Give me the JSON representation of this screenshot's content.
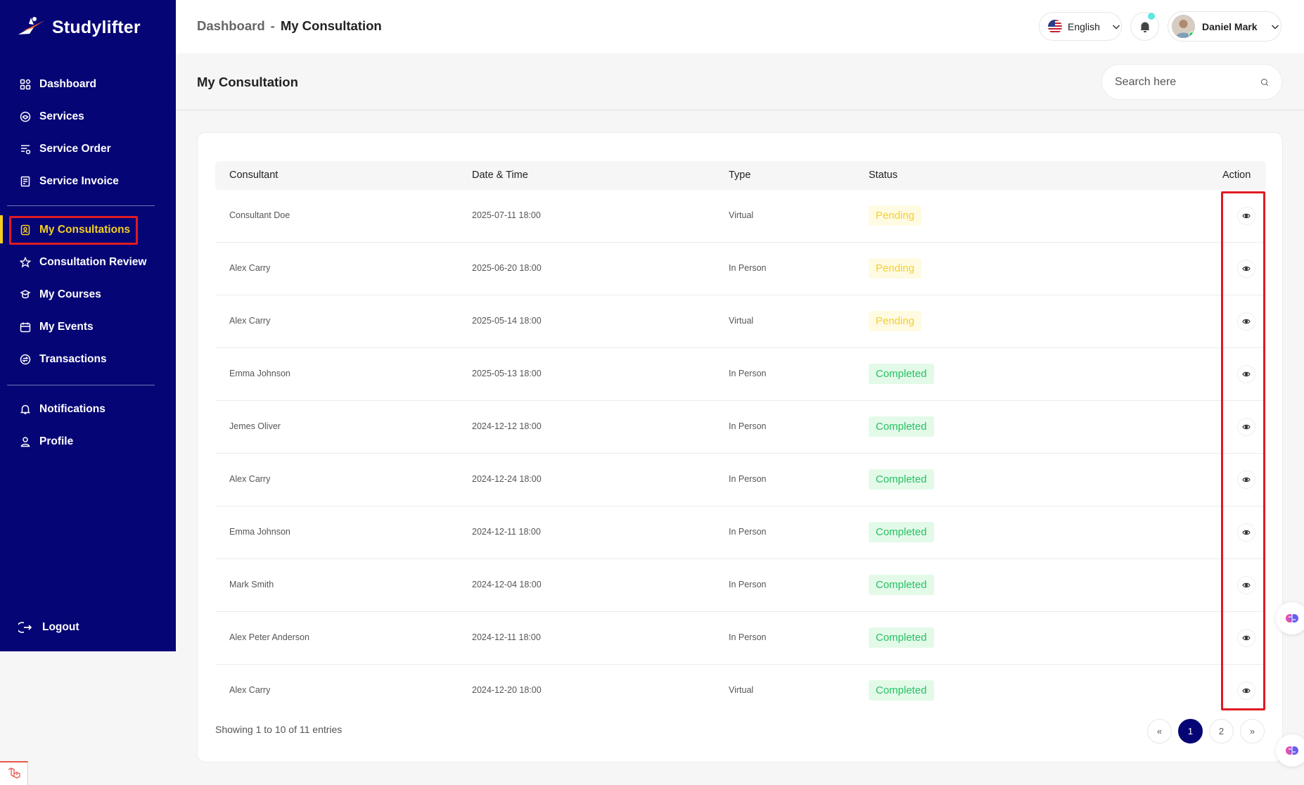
{
  "brand": {
    "name": "Studylifter"
  },
  "sidebar": {
    "items": [
      {
        "label": "Dashboard",
        "icon": "dashboard-icon"
      },
      {
        "label": "Services",
        "icon": "services-icon"
      },
      {
        "label": "Service Order",
        "icon": "service-order-icon"
      },
      {
        "label": "Service Invoice",
        "icon": "invoice-icon"
      },
      {
        "label": "My Consultations",
        "icon": "consultation-icon",
        "active": true
      },
      {
        "label": "Consultation Review",
        "icon": "star-icon"
      },
      {
        "label": "My Courses",
        "icon": "courses-icon"
      },
      {
        "label": "My Events",
        "icon": "calendar-icon"
      },
      {
        "label": "Transactions",
        "icon": "transactions-icon"
      },
      {
        "label": "Notifications",
        "icon": "bell-icon"
      },
      {
        "label": "Profile",
        "icon": "user-icon"
      }
    ],
    "logout_label": "Logout"
  },
  "header": {
    "breadcrumb_root": "Dashboard",
    "breadcrumb_separator": "-",
    "breadcrumb_current": "My Consultation",
    "language": "English",
    "user_name": "Daniel Mark"
  },
  "page": {
    "title": "My Consultation",
    "search_placeholder": "Search here"
  },
  "table": {
    "columns": [
      "Consultant",
      "Date & Time",
      "Type",
      "Status",
      "Action"
    ],
    "rows": [
      {
        "consultant": "Consultant Doe",
        "datetime": "2025-07-11 18:00",
        "type": "Virtual",
        "status": "Pending"
      },
      {
        "consultant": "Alex Carry",
        "datetime": "2025-06-20 18:00",
        "type": "In Person",
        "status": "Pending"
      },
      {
        "consultant": "Alex Carry",
        "datetime": "2025-05-14 18:00",
        "type": "Virtual",
        "status": "Pending"
      },
      {
        "consultant": "Emma Johnson",
        "datetime": "2025-05-13 18:00",
        "type": "In Person",
        "status": "Completed"
      },
      {
        "consultant": "Jemes Oliver",
        "datetime": "2024-12-12 18:00",
        "type": "In Person",
        "status": "Completed"
      },
      {
        "consultant": "Alex Carry",
        "datetime": "2024-12-24 18:00",
        "type": "In Person",
        "status": "Completed"
      },
      {
        "consultant": "Emma Johnson",
        "datetime": "2024-12-11 18:00",
        "type": "In Person",
        "status": "Completed"
      },
      {
        "consultant": "Mark Smith",
        "datetime": "2024-12-04 18:00",
        "type": "In Person",
        "status": "Completed"
      },
      {
        "consultant": "Alex Peter Anderson",
        "datetime": "2024-12-11 18:00",
        "type": "In Person",
        "status": "Completed"
      },
      {
        "consultant": "Alex Carry",
        "datetime": "2024-12-20 18:00",
        "type": "Virtual",
        "status": "Completed"
      }
    ],
    "footer": "Showing 1 to 10 of 11 entries",
    "pagination": {
      "first": "«",
      "pages": [
        "1",
        "2"
      ],
      "current": "1",
      "last": "»"
    }
  },
  "colors": {
    "sidebar_bg": "#050576",
    "active_text": "#f5cf1e",
    "highlight_border": "#e01a22",
    "pending": "#f6cf2a",
    "completed": "#28c064"
  }
}
